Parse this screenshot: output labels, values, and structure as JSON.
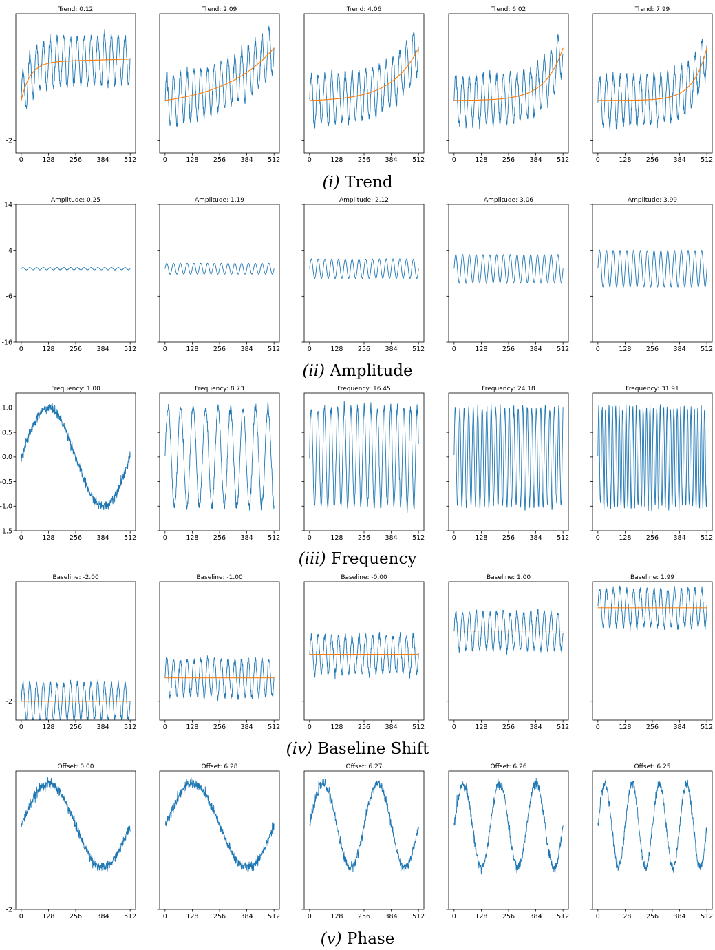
{
  "colors": {
    "signal": "#1f77b4",
    "reference": "#ff7f0e",
    "axes": "#000000"
  },
  "chart_data": [
    {
      "type": "line",
      "row_caption": {
        "number": "(i)",
        "text": "Trend"
      },
      "x_ticks": [
        "0",
        "128",
        "256",
        "384",
        "512"
      ],
      "xlim": [
        0,
        512
      ],
      "y_ticks": [
        "-2"
      ],
      "ylim": [
        -2.6,
        4.3
      ],
      "signal": {
        "kind": "sine",
        "frequency": 16,
        "amplitude": 1.2,
        "noise": 0.12,
        "phase": 0
      },
      "plots": [
        {
          "title": "Trend: 0.12",
          "trend": 0.12,
          "baseline": 0
        },
        {
          "title": "Trend: 2.09",
          "trend": 2.09,
          "baseline": 0
        },
        {
          "title": "Trend: 4.06",
          "trend": 4.06,
          "baseline": 0
        },
        {
          "title": "Trend: 6.02",
          "trend": 6.02,
          "baseline": 0
        },
        {
          "title": "Trend: 7.99",
          "trend": 7.99,
          "baseline": 0
        }
      ]
    },
    {
      "type": "line",
      "row_caption": {
        "number": "(ii)",
        "text": "Amplitude"
      },
      "x_ticks": [
        "0",
        "128",
        "256",
        "384",
        "512"
      ],
      "xlim": [
        0,
        512
      ],
      "y_ticks": [
        "14",
        "4",
        "-6",
        "-16"
      ],
      "ylim": [
        -16,
        14
      ],
      "signal": {
        "kind": "sine",
        "frequency": 16,
        "noise": 0.02,
        "phase": 0
      },
      "plots": [
        {
          "title": "Amplitude: 0.25",
          "amplitude": 0.25
        },
        {
          "title": "Amplitude: 1.19",
          "amplitude": 1.19
        },
        {
          "title": "Amplitude: 2.12",
          "amplitude": 2.12
        },
        {
          "title": "Amplitude: 3.06",
          "amplitude": 3.06
        },
        {
          "title": "Amplitude: 3.99",
          "amplitude": 3.99
        }
      ]
    },
    {
      "type": "line",
      "row_caption": {
        "number": "(iii)",
        "text": "Frequency"
      },
      "x_ticks": [
        "0",
        "128",
        "256",
        "384",
        "512"
      ],
      "xlim": [
        0,
        512
      ],
      "y_ticks": [
        "1.0",
        "0.5",
        "0.0",
        "-0.5",
        "-1.0",
        "-1.5"
      ],
      "ylim": [
        -1.5,
        1.3
      ],
      "signal": {
        "kind": "sine",
        "amplitude": 1.0,
        "noise": 0.05,
        "phase": 0
      },
      "plots": [
        {
          "title": "Frequency: 1.00",
          "frequency": 1.0
        },
        {
          "title": "Frequency: 8.73",
          "frequency": 8.73
        },
        {
          "title": "Frequency: 16.45",
          "frequency": 16.45
        },
        {
          "title": "Frequency: 24.18",
          "frequency": 24.18
        },
        {
          "title": "Frequency: 31.91",
          "frequency": 31.91
        }
      ]
    },
    {
      "type": "line",
      "row_caption": {
        "number": "(iv)",
        "text": "Baseline Shift"
      },
      "x_ticks": [
        "0",
        "128",
        "256",
        "384",
        "512"
      ],
      "xlim": [
        0,
        512
      ],
      "y_ticks": [
        "-2"
      ],
      "ylim": [
        -2.8,
        3.1
      ],
      "signal": {
        "kind": "sine",
        "frequency": 16,
        "amplitude": 0.8,
        "noise": 0.08,
        "phase": 0
      },
      "plots": [
        {
          "title": "Baseline: -2.00",
          "baseline": -2.0
        },
        {
          "title": "Baseline: -1.00",
          "baseline": -1.0
        },
        {
          "title": "Baseline: -0.00",
          "baseline": 0.0
        },
        {
          "title": "Baseline: 1.00",
          "baseline": 1.0
        },
        {
          "title": "Baseline: 1.99",
          "baseline": 1.99
        }
      ]
    },
    {
      "type": "line",
      "row_caption": {
        "number": "(v)",
        "text": "Phase"
      },
      "x_ticks": [
        "0",
        "128",
        "256",
        "384",
        "512"
      ],
      "xlim": [
        0,
        512
      ],
      "y_ticks": [
        "-2"
      ],
      "ylim": [
        -2.0,
        1.3
      ],
      "signal": {
        "kind": "sine",
        "amplitude": 1.0,
        "noise": 0.06
      },
      "plots": [
        {
          "title": "Offset: 0.00",
          "phase": 0.0,
          "frequency": 1
        },
        {
          "title": "Offset: 6.28",
          "phase": 6.28,
          "frequency": 1
        },
        {
          "title": "Offset: 6.27",
          "phase": 6.27,
          "frequency": 2
        },
        {
          "title": "Offset: 6.26",
          "phase": 6.26,
          "frequency": 3
        },
        {
          "title": "Offset: 6.25",
          "phase": 6.25,
          "frequency": 4
        }
      ]
    }
  ]
}
